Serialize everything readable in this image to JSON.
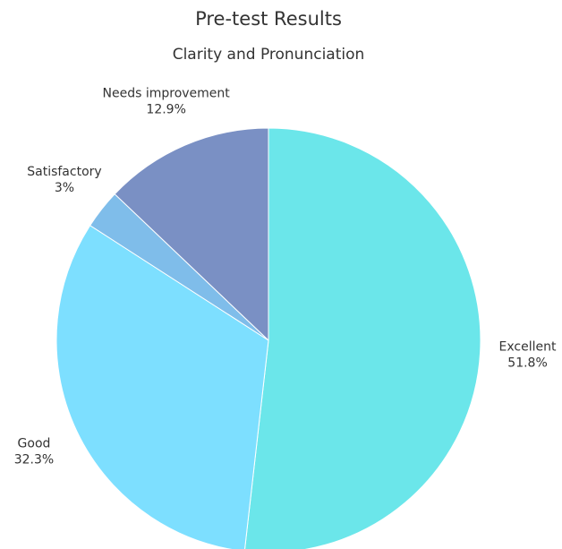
{
  "chart_data": {
    "type": "pie",
    "title": "Pre-test Results",
    "subtitle": "Clarity and Pronunciation",
    "categories": [
      "Excellent",
      "Good",
      "Satisfactory",
      "Needs improvement"
    ],
    "values": [
      51.8,
      32.3,
      3,
      12.9
    ],
    "value_labels": [
      "51.8%",
      "32.3%",
      "3%",
      "12.9%"
    ],
    "colors": [
      "#6be6ea",
      "#7ddfff",
      "#7fbdea",
      "#7a90c4"
    ]
  }
}
